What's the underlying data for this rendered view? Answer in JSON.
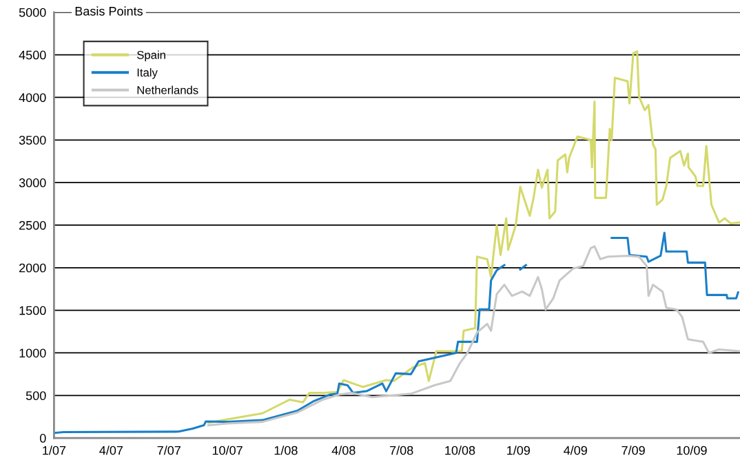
{
  "chart_data": {
    "type": "line",
    "ylabel": "Basis Points",
    "ylim": [
      0,
      5000
    ],
    "yticks": [
      0,
      500,
      1000,
      1500,
      2000,
      2500,
      3000,
      3500,
      4000,
      4500,
      5000
    ],
    "xlim": [
      "2007-01-01",
      "2009-12-16"
    ],
    "xticks": [
      {
        "value": "2007-01-01",
        "label": "1/07"
      },
      {
        "value": "2007-04-01",
        "label": "4/07"
      },
      {
        "value": "2007-07-01",
        "label": "7/07"
      },
      {
        "value": "2007-10-01",
        "label": "10/07"
      },
      {
        "value": "2008-01-01",
        "label": "1/08"
      },
      {
        "value": "2008-04-01",
        "label": "4/08"
      },
      {
        "value": "2008-07-01",
        "label": "7/08"
      },
      {
        "value": "2008-10-01",
        "label": "10/08"
      },
      {
        "value": "2009-01-01",
        "label": "1/09"
      },
      {
        "value": "2009-04-01",
        "label": "4/09"
      },
      {
        "value": "2009-07-01",
        "label": "7/09"
      },
      {
        "value": "2009-10-01",
        "label": "10/09"
      }
    ],
    "grid": "y",
    "legend": "top left",
    "marker": "none",
    "line_style": "solid",
    "series": [
      {
        "name": "Spain",
        "color": "#d4d96a",
        "x": [
          "2007-09-01",
          "2007-10-01",
          "2007-11-25",
          "2008-01-07",
          "2008-01-28",
          "2008-02-07",
          "2008-03-01",
          "2008-03-22",
          "2008-04-01",
          "2008-05-01",
          "2008-06-07",
          "2008-06-19",
          "2008-07-19",
          "2008-08-07",
          "2008-08-13",
          "2008-08-25",
          "2008-10-04",
          "2008-10-07",
          "2008-10-25",
          "2008-10-28",
          "2008-11-13",
          "2008-11-19",
          "2008-11-28",
          "2008-12-04",
          "2008-12-13",
          "2008-12-16",
          "2008-12-28",
          "2009-01-04",
          "2009-01-19",
          "2009-01-25",
          "2009-02-01",
          "2009-02-07",
          "2009-02-16",
          "2009-02-19",
          "2009-02-28",
          "2009-03-04",
          "2009-03-16",
          "2009-03-19",
          "2009-03-22",
          "2009-04-04",
          "2009-04-25",
          "2009-04-27",
          "2009-05-01",
          "2009-05-02",
          "2009-05-19",
          "2009-05-25",
          "2009-05-28",
          "2009-06-02",
          "2009-06-22",
          "2009-06-25",
          "2009-07-01",
          "2009-07-07",
          "2009-07-10",
          "2009-07-19",
          "2009-07-25",
          "2009-08-01",
          "2009-08-05",
          "2009-08-07",
          "2009-08-16",
          "2009-08-22",
          "2009-08-28",
          "2009-09-13",
          "2009-09-19",
          "2009-09-25",
          "2009-09-26",
          "2009-10-07",
          "2009-10-10",
          "2009-10-19",
          "2009-10-24",
          "2009-11-01",
          "2009-11-13",
          "2009-11-22",
          "2009-12-01",
          "2009-12-15"
        ],
        "values": [
          180,
          220,
          290,
          450,
          420,
          530,
          530,
          540,
          680,
          600,
          680,
          670,
          830,
          880,
          670,
          1020,
          1020,
          1260,
          1290,
          2130,
          2100,
          1890,
          2500,
          2150,
          2580,
          2210,
          2500,
          2950,
          2610,
          2820,
          3150,
          2940,
          3150,
          2580,
          2660,
          3260,
          3330,
          3120,
          3290,
          3540,
          3500,
          3180,
          3950,
          2820,
          2820,
          3630,
          3500,
          4230,
          4190,
          3930,
          4520,
          4540,
          4010,
          3850,
          3910,
          3450,
          3390,
          2740,
          2800,
          2960,
          3290,
          3370,
          3200,
          3340,
          3180,
          3070,
          2960,
          2960,
          3430,
          2740,
          2530,
          2580,
          2520,
          2530
        ]
      },
      {
        "name": "Italy",
        "color": "#1a7fc8",
        "x": [
          "2007-01-01",
          "2007-01-16",
          "2007-07-16",
          "2007-08-07",
          "2007-08-25",
          "2007-08-28",
          "2007-10-01",
          "2007-11-25",
          "2008-01-19",
          "2008-02-13",
          "2008-03-10",
          "2008-03-22",
          "2008-03-25",
          "2008-04-07",
          "2008-04-16",
          "2008-05-07",
          "2008-06-01",
          "2008-06-07",
          "2008-06-22",
          "2008-07-16",
          "2008-07-28",
          "2008-09-25",
          "2008-09-28",
          "2008-10-28",
          "2008-11-01",
          "2008-11-16",
          "2008-11-19",
          "2008-11-28",
          "2008-12-10",
          "2008-12-13",
          "2009-01-04",
          "2009-01-13",
          "2009-01-16",
          "2009-05-28",
          "2009-06-22",
          "2009-06-25",
          "2009-07-22",
          "2009-07-25",
          "2009-08-13",
          "2009-08-19",
          "2009-08-22",
          "2009-09-23",
          "2009-09-25",
          "2009-10-22",
          "2009-10-25",
          "2009-11-25",
          "2009-11-26",
          "2009-12-10",
          "2009-12-13"
        ],
        "values": [
          60,
          70,
          75,
          110,
          150,
          195,
          190,
          210,
          320,
          430,
          510,
          520,
          640,
          620,
          530,
          550,
          640,
          550,
          760,
          750,
          900,
          1000,
          1130,
          1130,
          1510,
          1510,
          1850,
          1970,
          2030,
          null,
          1980,
          2030,
          null,
          2350,
          2350,
          2150,
          2130,
          2070,
          2140,
          2410,
          2190,
          2190,
          2060,
          2060,
          1680,
          1680,
          1640,
          1640,
          1710
        ]
      },
      {
        "name": "Netherlands",
        "color": "#c8c8c8",
        "x": [
          "2007-09-01",
          "2007-10-01",
          "2007-11-25",
          "2008-01-19",
          "2008-02-28",
          "2008-03-25",
          "2008-04-13",
          "2008-05-16",
          "2008-07-16",
          "2008-08-22",
          "2008-09-16",
          "2008-10-01",
          "2008-10-13",
          "2008-10-28",
          "2008-11-13",
          "2008-11-19",
          "2008-11-28",
          "2008-12-10",
          "2008-12-22",
          "2009-01-07",
          "2009-01-19",
          "2009-02-01",
          "2009-02-07",
          "2009-02-13",
          "2009-02-25",
          "2009-03-07",
          "2009-03-28",
          "2009-04-13",
          "2009-04-25",
          "2009-05-01",
          "2009-05-10",
          "2009-05-22",
          "2009-06-22",
          "2009-07-10",
          "2009-07-22",
          "2009-07-25",
          "2009-08-01",
          "2009-08-16",
          "2009-08-22",
          "2009-09-07",
          "2009-09-16",
          "2009-09-25",
          "2009-10-19",
          "2009-10-28",
          "2009-11-13",
          "2009-12-15"
        ],
        "values": [
          150,
          170,
          190,
          300,
          450,
          510,
          530,
          480,
          520,
          620,
          670,
          880,
          1000,
          1240,
          1340,
          1260,
          1690,
          1800,
          1670,
          1720,
          1670,
          1890,
          1750,
          1510,
          1640,
          1850,
          1990,
          2020,
          2230,
          2250,
          2100,
          2130,
          2140,
          2130,
          2020,
          1670,
          1800,
          1720,
          1530,
          1510,
          1420,
          1160,
          1130,
          1000,
          1040,
          1020
        ]
      }
    ]
  }
}
